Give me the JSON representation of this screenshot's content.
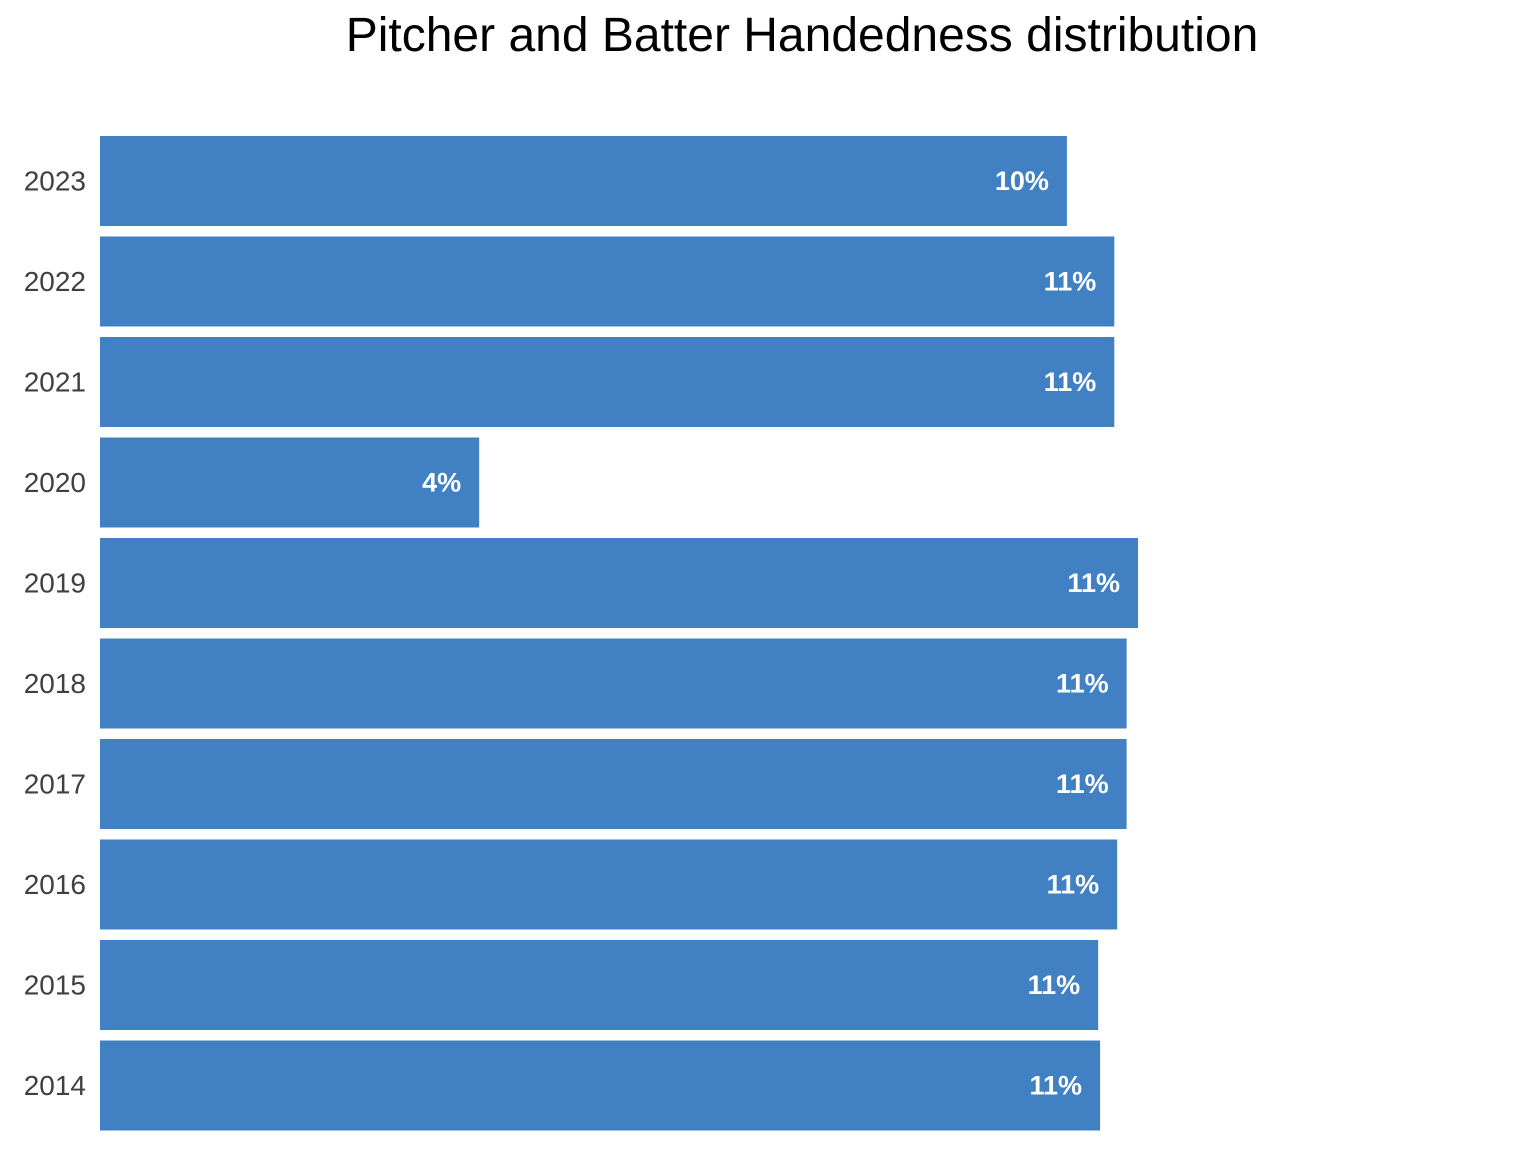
{
  "chart_data": {
    "type": "bar",
    "orientation": "horizontal",
    "title": "Pitcher and Batter Handedness distribution",
    "xlabel": "",
    "ylabel": "",
    "grid": false,
    "categories": [
      "2023",
      "2022",
      "2021",
      "2020",
      "2019",
      "2018",
      "2017",
      "2016",
      "2015",
      "2014"
    ],
    "values": [
      10.2,
      10.7,
      10.7,
      4.0,
      10.95,
      10.83,
      10.83,
      10.73,
      10.53,
      10.55
    ],
    "labels": [
      "10%",
      "11%",
      "11%",
      "4%",
      "11%",
      "11%",
      "11%",
      "11%",
      "11%",
      "11%"
    ],
    "xlim": [
      0,
      10.95
    ],
    "colors": {
      "bar": "#4180C2",
      "bar_label": "#ffffff",
      "tick_label": "#404040"
    }
  }
}
